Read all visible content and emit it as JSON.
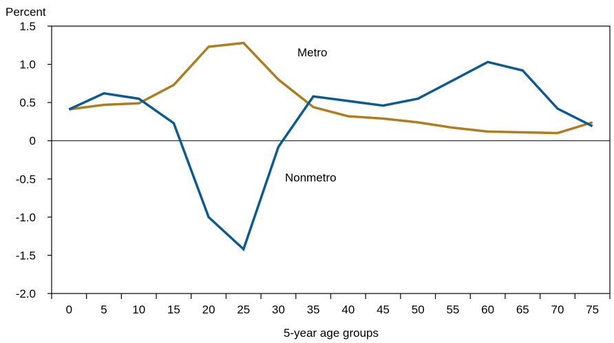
{
  "chart_data": {
    "type": "line",
    "title": "",
    "ylabel": "Percent",
    "xlabel": "5-year age groups",
    "ylim": [
      -2.0,
      1.5
    ],
    "y_ticks": [
      "1.5",
      "1.0",
      "0.5",
      "0",
      "-0.5",
      "-1.0",
      "-1.5",
      "-2.0"
    ],
    "y_tick_values": [
      1.5,
      1.0,
      0.5,
      0,
      -0.5,
      -1.0,
      -1.5,
      -2.0
    ],
    "categories": [
      "0",
      "5",
      "10",
      "15",
      "20",
      "25",
      "30",
      "35",
      "40",
      "45",
      "50",
      "55",
      "60",
      "65",
      "70",
      "75"
    ],
    "zero_line": true,
    "grid": false,
    "series": [
      {
        "name": "Metro",
        "color": "#b07d1e",
        "values": [
          0.41,
          0.47,
          0.49,
          0.73,
          1.23,
          1.28,
          0.8,
          0.44,
          0.32,
          0.29,
          0.24,
          0.17,
          0.12,
          0.11,
          0.1,
          0.24
        ]
      },
      {
        "name": "Nonmetro",
        "color": "#0a5a93",
        "values": [
          0.41,
          0.62,
          0.55,
          0.23,
          -1.0,
          -1.42,
          -0.08,
          0.58,
          0.52,
          0.46,
          0.55,
          0.79,
          1.03,
          0.92,
          0.42,
          0.19
        ]
      }
    ]
  }
}
